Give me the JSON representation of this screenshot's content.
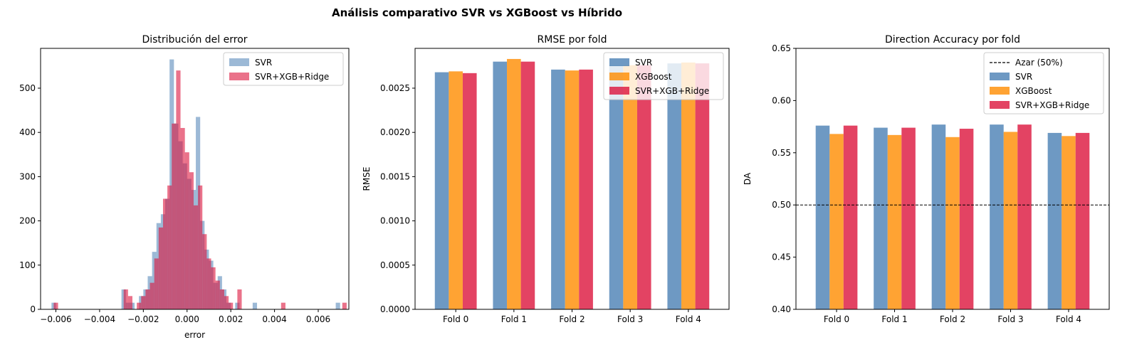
{
  "figure": {
    "suptitle": "Análisis comparativo SVR vs XGBoost vs Híbrido"
  },
  "colors": {
    "svr": "#4a7fb4",
    "xgb": "#ff8c00",
    "hyb": "#dc143c",
    "axis": "#000000"
  },
  "chart_data": [
    {
      "type": "histogram",
      "title": "Distribución del error",
      "xlabel": "error",
      "ylabel": "",
      "xlim": [
        -0.0067,
        0.0074
      ],
      "ylim": [
        0,
        590
      ],
      "xticks": [
        -0.006,
        -0.004,
        -0.002,
        0.0,
        0.002,
        0.004,
        0.006
      ],
      "xtick_labels": [
        "−0.006",
        "−0.004",
        "−0.002",
        "0.000",
        "0.002",
        "0.004",
        "0.006"
      ],
      "yticks": [
        0,
        100,
        200,
        300,
        400,
        500
      ],
      "ytick_labels": [
        "0",
        "100",
        "200",
        "300",
        "400",
        "500"
      ],
      "legend_position": "top-right",
      "grid": false,
      "series": [
        {
          "name": "SVR",
          "color": "#4a7fb4",
          "opacity": 0.55,
          "bin_start": -0.0062,
          "bin_width": 0.0002,
          "counts": [
            15,
            0,
            0,
            0,
            0,
            0,
            0,
            0,
            0,
            0,
            0,
            0,
            0,
            0,
            0,
            0,
            45,
            15,
            15,
            0,
            30,
            45,
            75,
            130,
            195,
            215,
            250,
            565,
            420,
            380,
            330,
            295,
            270,
            435,
            200,
            135,
            110,
            60,
            75,
            45,
            15,
            0,
            15,
            0,
            0,
            0,
            15,
            0,
            0,
            0,
            0,
            0,
            0,
            0,
            0,
            0,
            0,
            0,
            0,
            0,
            0,
            0,
            0,
            0,
            0,
            15
          ]
        },
        {
          "name": "SVR+XGB+Ridge",
          "color": "#dc143c",
          "opacity": 0.6,
          "bin_start": -0.0061,
          "bin_width": 0.0002,
          "counts": [
            15,
            0,
            0,
            0,
            0,
            0,
            0,
            0,
            0,
            0,
            0,
            0,
            0,
            0,
            0,
            0,
            45,
            30,
            0,
            15,
            30,
            45,
            60,
            115,
            185,
            250,
            280,
            420,
            540,
            410,
            355,
            310,
            235,
            280,
            170,
            115,
            95,
            65,
            45,
            30,
            15,
            0,
            45,
            0,
            0,
            0,
            0,
            0,
            0,
            0,
            0,
            0,
            15,
            0,
            0,
            0,
            0,
            0,
            0,
            0,
            0,
            0,
            0,
            0,
            0,
            0,
            15
          ]
        }
      ]
    },
    {
      "type": "bar",
      "title": "RMSE por fold",
      "xlabel": "",
      "ylabel": "RMSE",
      "ylim": [
        0,
        0.00295
      ],
      "yticks": [
        0,
        0.0005,
        0.001,
        0.0015,
        0.002,
        0.0025
      ],
      "ytick_labels": [
        "0.0000",
        "0.0005",
        "0.0010",
        "0.0015",
        "0.0020",
        "0.0025"
      ],
      "categories": [
        "Fold 0",
        "Fold 1",
        "Fold 2",
        "Fold 3",
        "Fold 4"
      ],
      "legend_position": "top-right",
      "grid": false,
      "series": [
        {
          "name": "SVR",
          "color": "#4a7fb4",
          "values": [
            0.00268,
            0.0028,
            0.00271,
            0.00276,
            0.00278
          ]
        },
        {
          "name": "XGBoost",
          "color": "#ff8c00",
          "values": [
            0.00269,
            0.00283,
            0.0027,
            0.00276,
            0.00279
          ]
        },
        {
          "name": "SVR+XGB+Ridge",
          "color": "#dc143c",
          "values": [
            0.00267,
            0.0028,
            0.00271,
            0.00276,
            0.00278
          ]
        }
      ]
    },
    {
      "type": "bar",
      "title": "Direction Accuracy por fold",
      "xlabel": "",
      "ylabel": "DA",
      "ylim": [
        0.4,
        0.65
      ],
      "yticks": [
        0.4,
        0.45,
        0.5,
        0.55,
        0.6,
        0.65
      ],
      "ytick_labels": [
        "0.40",
        "0.45",
        "0.50",
        "0.55",
        "0.60",
        "0.65"
      ],
      "categories": [
        "Fold 0",
        "Fold 1",
        "Fold 2",
        "Fold 3",
        "Fold 4"
      ],
      "legend_position": "top-right",
      "grid": false,
      "reference_line": {
        "name": "Azar (50%)",
        "value": 0.5,
        "style": "dashed",
        "color": "#000000"
      },
      "series": [
        {
          "name": "SVR",
          "color": "#4a7fb4",
          "values": [
            0.576,
            0.574,
            0.577,
            0.577,
            0.569
          ]
        },
        {
          "name": "XGBoost",
          "color": "#ff8c00",
          "values": [
            0.568,
            0.567,
            0.565,
            0.57,
            0.566
          ]
        },
        {
          "name": "SVR+XGB+Ridge",
          "color": "#dc143c",
          "values": [
            0.576,
            0.574,
            0.573,
            0.577,
            0.569
          ]
        }
      ]
    }
  ]
}
